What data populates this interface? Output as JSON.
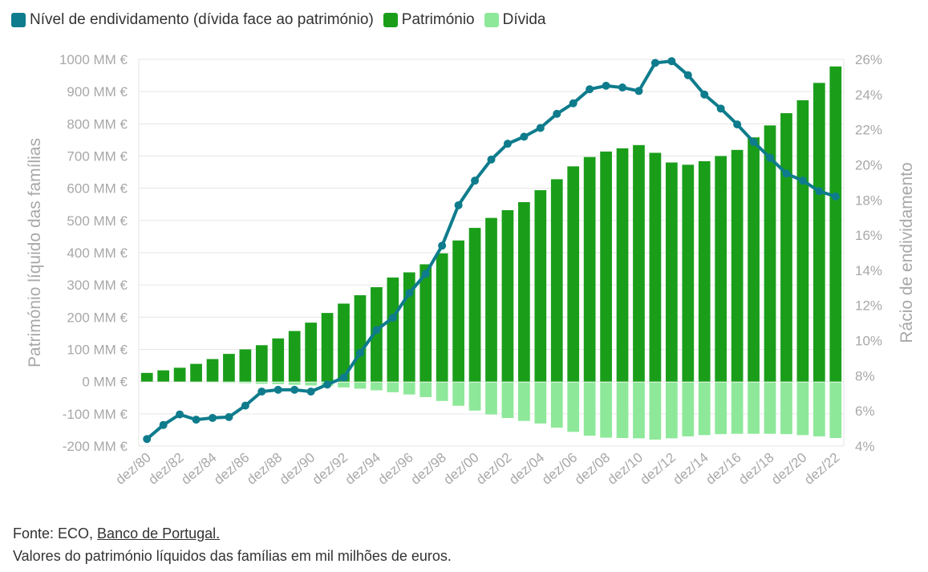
{
  "legend": {
    "ratio": "Nível de endividamento (dívida face ao património)",
    "patrimonio": "Património",
    "divida": "Dívida"
  },
  "footer": {
    "source_prefix": "Fonte: ECO, ",
    "source_link": "Banco de Portugal.",
    "note": "Valores do património líquidos das famílias em mil milhões de euros."
  },
  "chart_data": {
    "type": "bar",
    "title": "",
    "ylabel": "Património líquido das famílias",
    "y2label": "Rácio de endividamento",
    "ylim": [
      -200,
      1000
    ],
    "y2lim": [
      4,
      26
    ],
    "y_ticks": [
      "1000 MM €",
      "900 MM €",
      "800 MM €",
      "700 MM €",
      "600 MM €",
      "500 MM €",
      "400 MM €",
      "300 MM €",
      "200 MM €",
      "100 MM €",
      "0 MM €",
      "-100 MM €",
      "-200 MM €"
    ],
    "y2_ticks": [
      "26%",
      "24%",
      "22%",
      "20%",
      "18%",
      "16%",
      "14%",
      "12%",
      "10%",
      "8%",
      "6%",
      "4%"
    ],
    "x_tick_labels": [
      "dez/80",
      "dez/82",
      "dez/84",
      "dez/86",
      "dez/88",
      "dez/90",
      "dez/92",
      "dez/94",
      "dez/96",
      "dez/98",
      "dez/00",
      "dez/02",
      "dez/04",
      "dez/06",
      "dez/08",
      "dez/10",
      "dez/12",
      "dez/14",
      "dez/16",
      "dez/18",
      "dez/20",
      "dez/22"
    ],
    "colors": {
      "patrimonio": "#1a9e1a",
      "divida": "#8ee89a",
      "ratio": "#0e7c8c",
      "grid": "#e6e6e6",
      "axis_text": "#a8a8a8"
    },
    "categories": [
      "dez/80",
      "dez/81",
      "dez/82",
      "dez/83",
      "dez/84",
      "dez/85",
      "dez/86",
      "dez/87",
      "dez/88",
      "dez/89",
      "dez/90",
      "dez/91",
      "dez/92",
      "dez/93",
      "dez/94",
      "dez/95",
      "dez/96",
      "dez/97",
      "dez/98",
      "dez/99",
      "dez/00",
      "dez/01",
      "dez/02",
      "dez/03",
      "dez/04",
      "dez/05",
      "dez/06",
      "dez/07",
      "dez/08",
      "dez/09",
      "dez/10",
      "dez/11",
      "dez/12",
      "dez/13",
      "dez/14",
      "dez/15",
      "dez/16",
      "dez/17",
      "dez/18",
      "dez/19",
      "dez/20",
      "dez/21",
      "dez/22"
    ],
    "series": [
      {
        "name": "Património",
        "axis": "left",
        "type": "bar",
        "values": [
          27,
          35,
          43,
          55,
          70,
          86,
          100,
          113,
          134,
          157,
          183,
          213,
          242,
          268,
          293,
          323,
          339,
          364,
          398,
          438,
          477,
          508,
          532,
          557,
          594,
          628,
          668,
          697,
          714,
          724,
          734,
          710,
          680,
          673,
          684,
          700,
          719,
          758,
          795,
          833,
          873,
          927,
          978
        ]
      },
      {
        "name": "Dívida",
        "axis": "left",
        "type": "bar",
        "values": [
          -2,
          -2,
          -2,
          -3,
          -3,
          -4,
          -5,
          -7,
          -8,
          -10,
          -12,
          -14,
          -18,
          -22,
          -27,
          -33,
          -40,
          -48,
          -60,
          -75,
          -90,
          -102,
          -113,
          -122,
          -130,
          -143,
          -156,
          -168,
          -174,
          -175,
          -176,
          -180,
          -176,
          -170,
          -166,
          -163,
          -162,
          -162,
          -162,
          -163,
          -166,
          -170,
          -175
        ]
      },
      {
        "name": "Nível de endividamento (dívida face ao património)",
        "axis": "right",
        "type": "line",
        "values": [
          4.4,
          5.2,
          5.8,
          5.5,
          5.6,
          5.65,
          6.3,
          7.1,
          7.2,
          7.2,
          7.1,
          7.5,
          7.9,
          9.3,
          10.6,
          11.3,
          12.7,
          13.8,
          15.4,
          17.7,
          19.1,
          20.3,
          21.2,
          21.6,
          22.1,
          22.9,
          23.5,
          24.3,
          24.5,
          24.4,
          24.2,
          25.8,
          25.9,
          25.1,
          24.0,
          23.2,
          22.3,
          21.3,
          20.4,
          19.5,
          19.1,
          18.5,
          18.2
        ]
      }
    ]
  }
}
